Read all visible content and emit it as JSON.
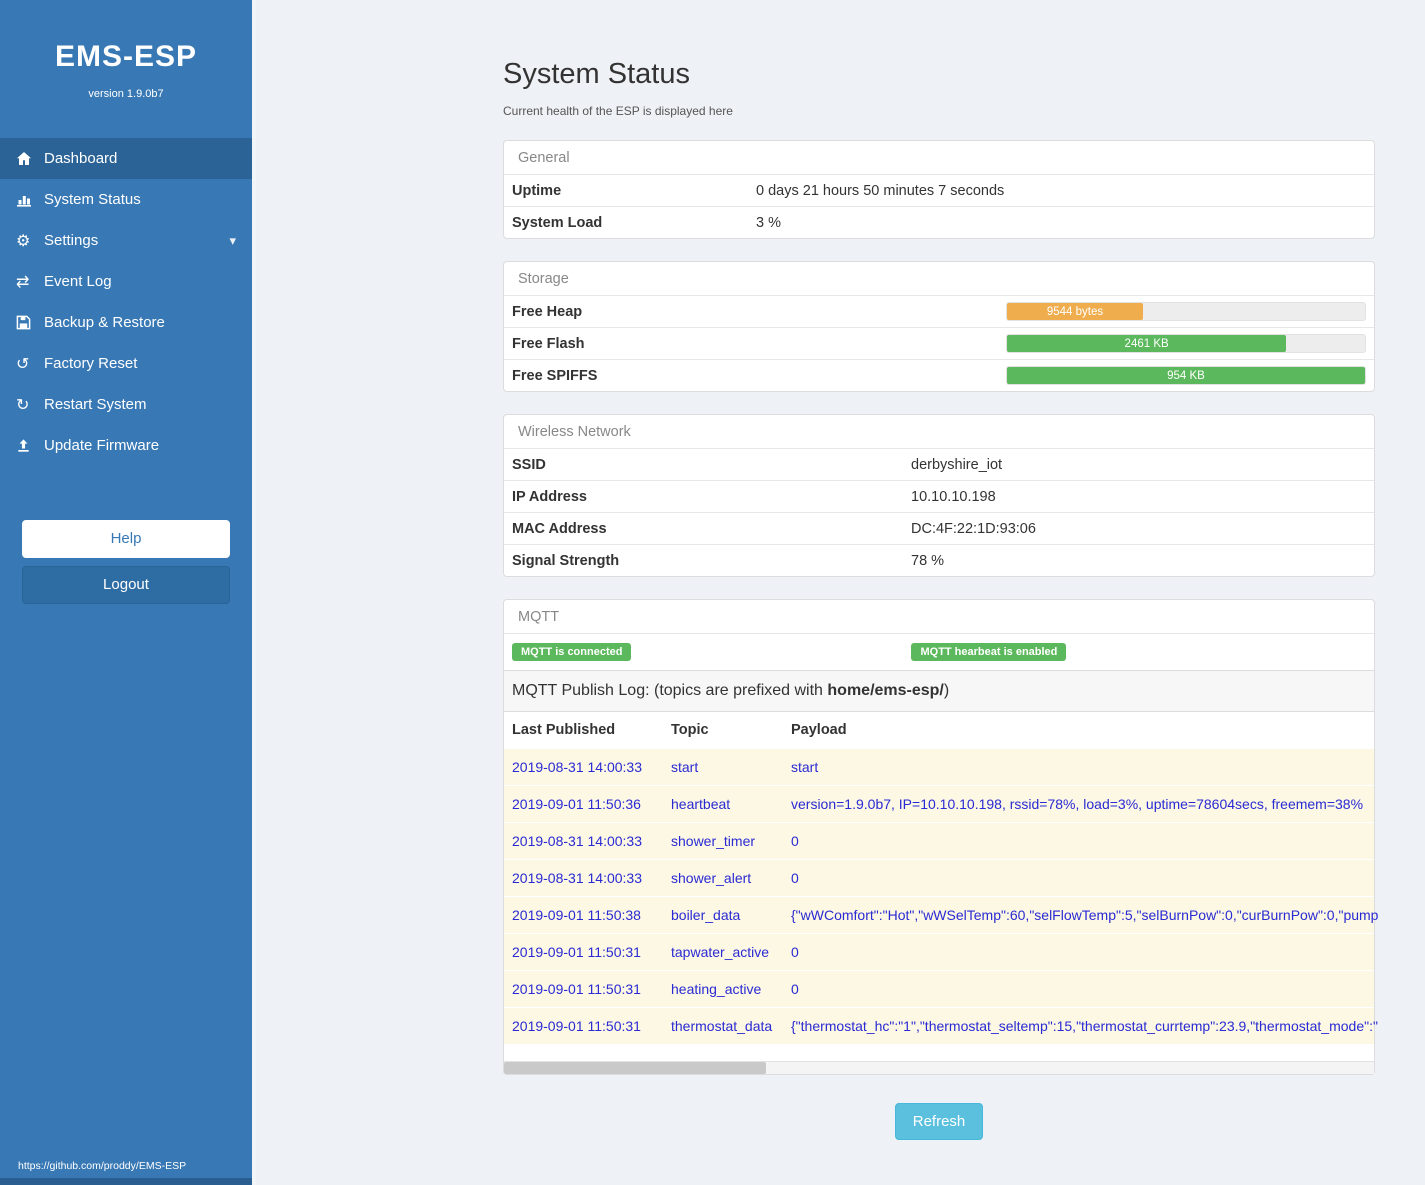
{
  "colors": {
    "sidebar": "#3878b4",
    "sidebar_active": "#2c6397",
    "logout": "#2e6da4",
    "main_bg": "#eef1f5",
    "link": "#2a2ad4",
    "badge_green": "#5cb85c",
    "row_yellow": "#fcf8e3",
    "refresh": "#5bc0de",
    "refresh_border": "#46b8da"
  },
  "sidebar": {
    "title": "EMS-ESP",
    "version": "version 1.9.0b7",
    "items": [
      {
        "label": "Dashboard",
        "icon": "home-icon",
        "active": true
      },
      {
        "label": "System Status",
        "icon": "bar-chart-icon",
        "active": false
      },
      {
        "label": "Settings",
        "icon": "gear-icon",
        "active": false,
        "chevron": "▾"
      },
      {
        "label": "Event Log",
        "icon": "swap-arrows-icon",
        "active": false
      },
      {
        "label": "Backup & Restore",
        "icon": "floppy-icon",
        "active": false
      },
      {
        "label": "Factory Reset",
        "icon": "reset-icon",
        "active": false
      },
      {
        "label": "Restart System",
        "icon": "restart-icon",
        "active": false
      },
      {
        "label": "Update Firmware",
        "icon": "upload-icon",
        "active": false
      }
    ],
    "icon_glyphs": {
      "gear": "⚙",
      "swap": "⇄",
      "reset": "↺",
      "restart": "↻",
      "chevron": "▾"
    },
    "help_label": "Help",
    "logout_label": "Logout",
    "footer_link": "https://github.com/proddy/EMS-ESP"
  },
  "main": {
    "title": "System Status",
    "subtitle": "Current health of the ESP is displayed here",
    "general": {
      "title": "General",
      "rows": [
        {
          "label": "Uptime",
          "value": "0 days 21 hours 50 minutes 7 seconds"
        },
        {
          "label": "System Load",
          "value": "3 %"
        }
      ]
    },
    "storage": {
      "title": "Storage",
      "rows": [
        {
          "label": "Free Heap",
          "bar_label": "9544 bytes",
          "percent": 38,
          "color": "#f0ad4e"
        },
        {
          "label": "Free Flash",
          "bar_label": "2461 KB",
          "percent": 78,
          "color": "#5cb85c"
        },
        {
          "label": "Free SPIFFS",
          "bar_label": "954 KB",
          "percent": 100,
          "color": "#5cb85c"
        }
      ]
    },
    "wireless": {
      "title": "Wireless Network",
      "rows": [
        {
          "label": "SSID",
          "value": "derbyshire_iot"
        },
        {
          "label": "IP Address",
          "value": "10.10.10.198"
        },
        {
          "label": "MAC Address",
          "value": "DC:4F:22:1D:93:06"
        },
        {
          "label": "Signal Strength",
          "value": "78 %"
        }
      ]
    },
    "mqtt": {
      "title": "MQTT",
      "badges": [
        "MQTT is connected",
        "MQTT hearbeat is enabled"
      ],
      "publish_log_text": "MQTT Publish Log: (topics are prefixed with ",
      "publish_log_bold": "home/ems-esp/",
      "publish_log_suffix": ")",
      "table": {
        "headers": [
          "Last Published",
          "Topic",
          "Payload"
        ],
        "rows": [
          [
            "2019-08-31 14:00:33",
            "start",
            "start"
          ],
          [
            "2019-09-01 11:50:36",
            "heartbeat",
            "version=1.9.0b7, IP=10.10.10.198, rssid=78%, load=3%, uptime=78604secs, freemem=38%"
          ],
          [
            "2019-08-31 14:00:33",
            "shower_timer",
            "0"
          ],
          [
            "2019-08-31 14:00:33",
            "shower_alert",
            "0"
          ],
          [
            "2019-09-01 11:50:38",
            "boiler_data",
            "{\"wWComfort\":\"Hot\",\"wWSelTemp\":60,\"selFlowTemp\":5,\"selBurnPow\":0,\"curBurnPow\":0,\"pump"
          ],
          [
            "2019-09-01 11:50:31",
            "tapwater_active",
            "0"
          ],
          [
            "2019-09-01 11:50:31",
            "heating_active",
            "0"
          ],
          [
            "2019-09-01 11:50:31",
            "thermostat_data",
            "{\"thermostat_hc\":\"1\",\"thermostat_seltemp\":15,\"thermostat_currtemp\":23.9,\"thermostat_mode\":\""
          ]
        ]
      }
    },
    "refresh_label": "Refresh"
  }
}
